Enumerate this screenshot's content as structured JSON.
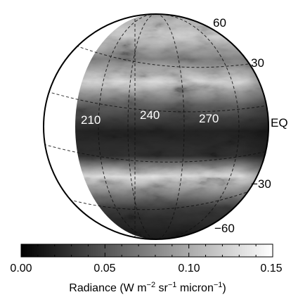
{
  "figure": {
    "latitude_labels": [
      "60",
      "30",
      "EQ",
      "−30",
      "−60"
    ],
    "longitude_labels": [
      "210",
      "240",
      "270"
    ],
    "colorbar": {
      "min": 0.0,
      "max": 0.15,
      "ticks": [
        "0.00",
        "0.05",
        "0.10",
        "0.15"
      ],
      "title_prefix": "Radiance (W m",
      "title_exp1": "−2",
      "title_mid1": " sr",
      "title_exp2": "−1",
      "title_mid2": " micron",
      "title_exp3": "−1",
      "title_suffix": ")",
      "colormap": "grayscale"
    }
  }
}
